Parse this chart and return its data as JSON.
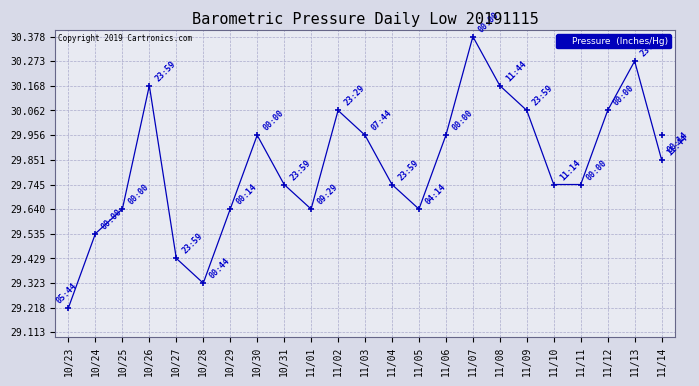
{
  "title": "Barometric Pressure Daily Low 20191115",
  "copyright": "Copyright 2019 Cartronics.com",
  "legend_label": "Pressure  (Inches/Hg)",
  "yticks": [
    29.113,
    29.218,
    29.323,
    29.429,
    29.535,
    29.64,
    29.745,
    29.851,
    29.956,
    30.062,
    30.168,
    30.273,
    30.378
  ],
  "x_labels": [
    "10/23",
    "10/24",
    "10/25",
    "10/26",
    "10/27",
    "10/28",
    "10/29",
    "10/30",
    "10/31",
    "11/01",
    "11/02",
    "11/03",
    "11/04",
    "11/05",
    "11/06",
    "11/07",
    "11/08",
    "11/09",
    "11/10",
    "11/11",
    "11/12",
    "11/13",
    "11/14"
  ],
  "points": [
    [
      0,
      29.218,
      "05:44"
    ],
    [
      1,
      29.535,
      "00:00"
    ],
    [
      2,
      29.64,
      "00:00"
    ],
    [
      3,
      30.168,
      "23:59"
    ],
    [
      4,
      29.429,
      "23:59"
    ],
    [
      5,
      29.323,
      "00:44"
    ],
    [
      6,
      29.64,
      "00:14"
    ],
    [
      7,
      29.956,
      "00:00"
    ],
    [
      8,
      29.745,
      "23:59"
    ],
    [
      9,
      29.64,
      "09:29"
    ],
    [
      10,
      30.062,
      "23:29"
    ],
    [
      11,
      29.956,
      "07:44"
    ],
    [
      12,
      29.745,
      "23:59"
    ],
    [
      13,
      29.64,
      "04:14"
    ],
    [
      14,
      29.956,
      "00:00"
    ],
    [
      15,
      30.378,
      "00:00"
    ],
    [
      16,
      30.168,
      "11:44"
    ],
    [
      17,
      30.062,
      "23:59"
    ],
    [
      18,
      29.745,
      "11:14"
    ],
    [
      19,
      29.745,
      "00:00"
    ],
    [
      20,
      30.062,
      "00:00"
    ],
    [
      21,
      30.273,
      "23:59"
    ],
    [
      22,
      29.851,
      "11:44"
    ],
    [
      22,
      29.956,
      "00:14"
    ]
  ],
  "line_color": "#0000bb",
  "bg_color": "#e8eaf2",
  "fig_bg_color": "#d8dae8",
  "grid_color": "#aaaacc",
  "title_fontsize": 11,
  "annot_fontsize": 6,
  "tick_fontsize": 7
}
